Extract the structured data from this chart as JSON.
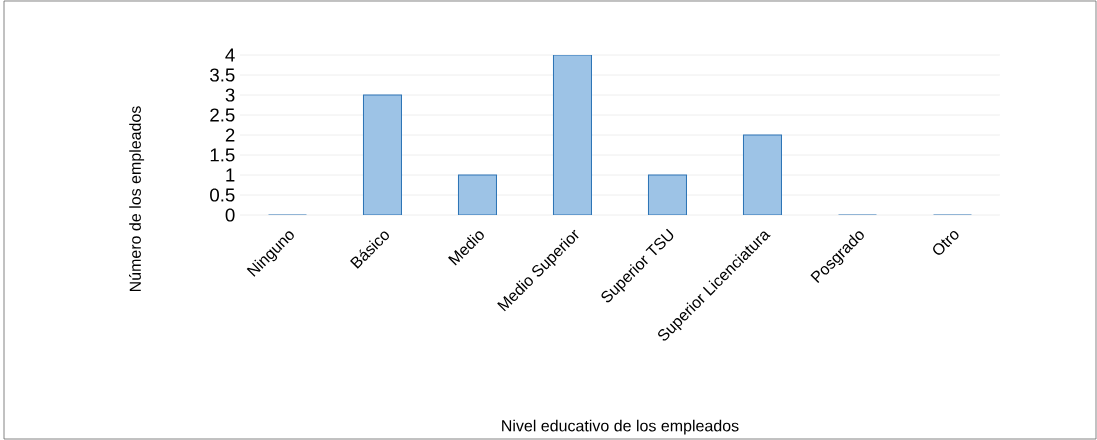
{
  "chart_data": {
    "type": "bar",
    "xlabel": "Nivel educativo de los empleados",
    "ylabel": "Número de los empleados",
    "categories": [
      "Ninguno",
      "Básico",
      "Medio",
      "Medio Superior",
      "Superior TSU",
      "Superior Licenciatura",
      "Posgrado",
      "Otro"
    ],
    "values": [
      0,
      3,
      1,
      4,
      1,
      2,
      0,
      0
    ],
    "color": "#9dc3e6",
    "ylim": [
      0,
      4
    ],
    "yticks": [
      0,
      0.5,
      1,
      1.5,
      2,
      2.5,
      3,
      3.5,
      4
    ],
    "grid": "y"
  }
}
